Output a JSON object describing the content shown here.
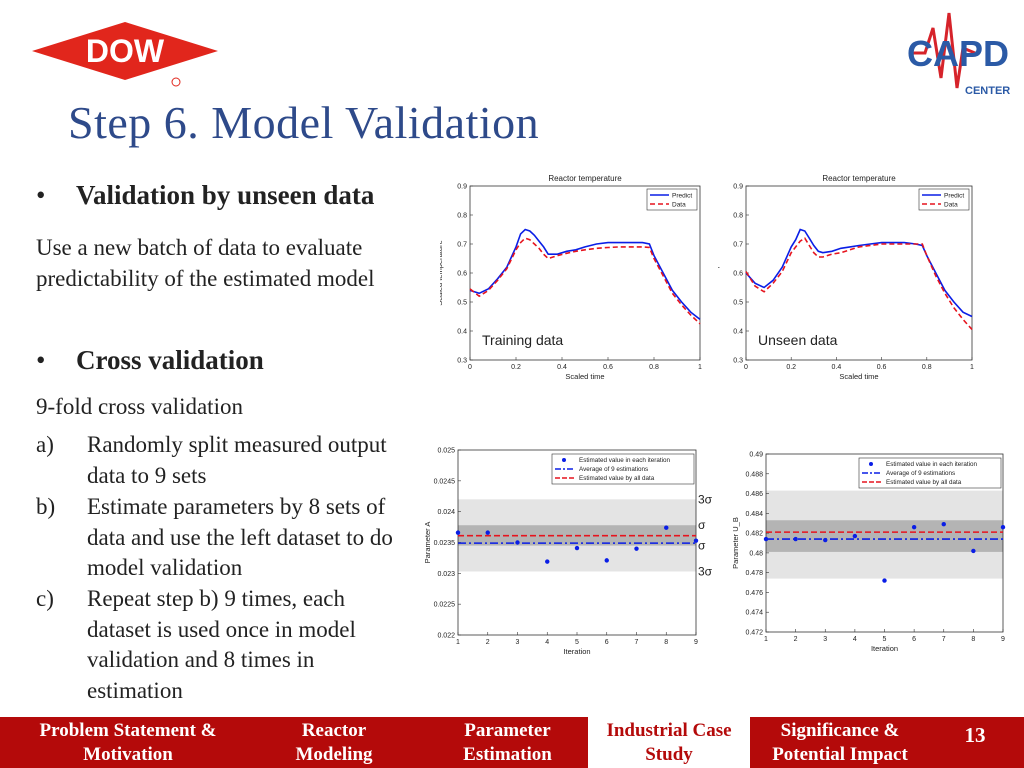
{
  "header": {
    "title": "Step 6. Model Validation",
    "dow_logo_text": "DOW",
    "capd_logo_text": "CAPD",
    "capd_logo_sub": "CENTER"
  },
  "content": {
    "bullet1": "Validation by unseen data",
    "para1_line1": "Use a new batch of data to evaluate",
    "para1_line2": "predictability of the estimated model",
    "bullet2": "Cross validation",
    "subtitle": "9-fold cross validation",
    "steps": [
      {
        "label": "a)",
        "text": "Randomly split measured output data to 9 sets"
      },
      {
        "label": "b)",
        "text": "Estimate parameters by 8 sets of data and use the left dataset to do model validation"
      },
      {
        "label": "c)",
        "text": "Repeat step b) 9 times, each dataset is used once in model validation and 8 times in estimation"
      }
    ]
  },
  "nav": {
    "items": [
      "Problem Statement & Motivation",
      "Reactor Modeling",
      "Parameter Estimation",
      "Industrial Case Study",
      "Significance & Potential Impact"
    ],
    "active": 3,
    "page_number": "13"
  },
  "colors": {
    "title": "#2e4a8a",
    "nav": "#b40a0a",
    "predict": "#0a1ee6",
    "data": "#e6141e",
    "band_outer": "#e4e4e4",
    "band_inner": "#b4b4b4"
  },
  "chart_data": [
    {
      "type": "line",
      "title": "Reactor temperature",
      "xlabel": "Scaled time",
      "ylabel": "Scaled temperature",
      "annotation": "Training data",
      "xlim": [
        0,
        1
      ],
      "ylim": [
        0.3,
        0.9
      ],
      "xticks": [
        "0",
        "0.2",
        "0.4",
        "0.6",
        "0.8",
        "1"
      ],
      "yticks": [
        "0.3",
        "0.4",
        "0.5",
        "0.6",
        "0.7",
        "0.8",
        "0.9"
      ],
      "legend": "top-right",
      "series": [
        {
          "name": "Predict",
          "x": [
            0,
            0.04,
            0.08,
            0.12,
            0.16,
            0.2,
            0.22,
            0.24,
            0.26,
            0.28,
            0.3,
            0.32,
            0.34,
            0.38,
            0.42,
            0.46,
            0.5,
            0.55,
            0.6,
            0.65,
            0.7,
            0.75,
            0.78,
            0.8,
            0.84,
            0.88,
            0.92,
            0.96,
            1.0
          ],
          "y": [
            0.54,
            0.53,
            0.545,
            0.58,
            0.62,
            0.69,
            0.735,
            0.75,
            0.745,
            0.73,
            0.71,
            0.69,
            0.665,
            0.665,
            0.675,
            0.68,
            0.69,
            0.7,
            0.705,
            0.705,
            0.705,
            0.705,
            0.7,
            0.66,
            0.6,
            0.54,
            0.5,
            0.465,
            0.44
          ]
        },
        {
          "name": "Data",
          "x": [
            0,
            0.04,
            0.08,
            0.12,
            0.16,
            0.2,
            0.22,
            0.24,
            0.26,
            0.28,
            0.3,
            0.32,
            0.34,
            0.38,
            0.42,
            0.46,
            0.5,
            0.55,
            0.6,
            0.65,
            0.7,
            0.75,
            0.78,
            0.8,
            0.84,
            0.88,
            0.92,
            0.96,
            1.0
          ],
          "y": [
            0.545,
            0.52,
            0.54,
            0.575,
            0.615,
            0.68,
            0.705,
            0.72,
            0.715,
            0.7,
            0.685,
            0.665,
            0.65,
            0.66,
            0.668,
            0.675,
            0.68,
            0.685,
            0.688,
            0.69,
            0.69,
            0.69,
            0.688,
            0.65,
            0.59,
            0.53,
            0.49,
            0.455,
            0.425
          ]
        }
      ]
    },
    {
      "type": "line",
      "title": "Reactor temperature",
      "xlabel": "Scaled time",
      "ylabel": "Scaled temperature",
      "annotation": "Unseen data",
      "xlim": [
        0,
        1
      ],
      "ylim": [
        0.3,
        0.9
      ],
      "xticks": [
        "0",
        "0.2",
        "0.4",
        "0.6",
        "0.8",
        "1"
      ],
      "yticks": [
        "0.3",
        "0.4",
        "0.5",
        "0.6",
        "0.7",
        "0.8",
        "0.9"
      ],
      "legend": "top-right",
      "series": [
        {
          "name": "Predict",
          "x": [
            0,
            0.04,
            0.08,
            0.12,
            0.16,
            0.2,
            0.22,
            0.24,
            0.26,
            0.28,
            0.3,
            0.32,
            0.34,
            0.38,
            0.42,
            0.46,
            0.5,
            0.55,
            0.6,
            0.65,
            0.7,
            0.75,
            0.78,
            0.8,
            0.84,
            0.88,
            0.92,
            0.96,
            1.0
          ],
          "y": [
            0.6,
            0.565,
            0.55,
            0.575,
            0.62,
            0.69,
            0.715,
            0.75,
            0.745,
            0.72,
            0.695,
            0.675,
            0.67,
            0.675,
            0.685,
            0.69,
            0.695,
            0.7,
            0.705,
            0.705,
            0.705,
            0.7,
            0.695,
            0.66,
            0.6,
            0.54,
            0.5,
            0.465,
            0.45
          ]
        },
        {
          "name": "Data",
          "x": [
            0,
            0.04,
            0.08,
            0.12,
            0.16,
            0.2,
            0.22,
            0.24,
            0.26,
            0.28,
            0.3,
            0.32,
            0.34,
            0.38,
            0.42,
            0.46,
            0.5,
            0.55,
            0.6,
            0.65,
            0.7,
            0.75,
            0.78,
            0.8,
            0.84,
            0.88,
            0.92,
            0.96,
            1.0
          ],
          "y": [
            0.605,
            0.555,
            0.535,
            0.565,
            0.605,
            0.67,
            0.69,
            0.71,
            0.72,
            0.695,
            0.67,
            0.655,
            0.655,
            0.665,
            0.67,
            0.68,
            0.69,
            0.695,
            0.7,
            0.7,
            0.7,
            0.7,
            0.7,
            0.66,
            0.59,
            0.53,
            0.48,
            0.44,
            0.405
          ]
        }
      ]
    },
    {
      "type": "scatter",
      "xlabel": "Iteration",
      "ylabel": "Parameter A",
      "xlim": [
        1,
        9
      ],
      "ylim": [
        0.022,
        0.025
      ],
      "xticks": [
        "1",
        "2",
        "3",
        "4",
        "5",
        "6",
        "7",
        "8",
        "9"
      ],
      "yticks": [
        "0.022",
        "0.0225",
        "0.023",
        "0.0235",
        "0.024",
        "0.0245",
        "0.025"
      ],
      "legend": "top-right",
      "band_labels": [
        "3σ",
        "σ",
        "σ",
        "3σ"
      ],
      "sigma_inner": [
        0.02345,
        0.02378
      ],
      "sigma_outer": [
        0.02303,
        0.0242
      ],
      "series": [
        {
          "name": "Estimated value in each iteration",
          "x": [
            1,
            2,
            3,
            4,
            5,
            6,
            7,
            8,
            9
          ],
          "y": [
            0.02366,
            0.02366,
            0.0235,
            0.02319,
            0.02341,
            0.02321,
            0.0234,
            0.02374,
            0.02353
          ]
        },
        {
          "name": "Average of 9 estimations",
          "value": 0.02349
        },
        {
          "name": "Estimated value by all data",
          "value": 0.02361
        }
      ]
    },
    {
      "type": "scatter",
      "xlabel": "Iteration",
      "ylabel": "Parameter U_B",
      "xlim": [
        1,
        9
      ],
      "ylim": [
        0.472,
        0.49
      ],
      "xticks": [
        "1",
        "2",
        "3",
        "4",
        "5",
        "6",
        "7",
        "8",
        "9"
      ],
      "yticks": [
        "0.472",
        "0.474",
        "0.476",
        "0.478",
        "0.48",
        "0.482",
        "0.484",
        "0.486",
        "0.488",
        "0.49"
      ],
      "legend": "top-right",
      "sigma_inner": [
        0.4801,
        0.4833
      ],
      "sigma_outer": [
        0.4774,
        0.4863
      ],
      "series": [
        {
          "name": "Estimated value in each iteration",
          "x": [
            1,
            2,
            3,
            4,
            5,
            6,
            7,
            8,
            9
          ],
          "y": [
            0.4814,
            0.4814,
            0.4813,
            0.4817,
            0.4772,
            0.4826,
            0.4829,
            0.4802,
            0.4826
          ]
        },
        {
          "name": "Average of 9 estimations",
          "value": 0.4814
        },
        {
          "name": "Estimated value by all data",
          "value": 0.4821
        }
      ]
    }
  ]
}
